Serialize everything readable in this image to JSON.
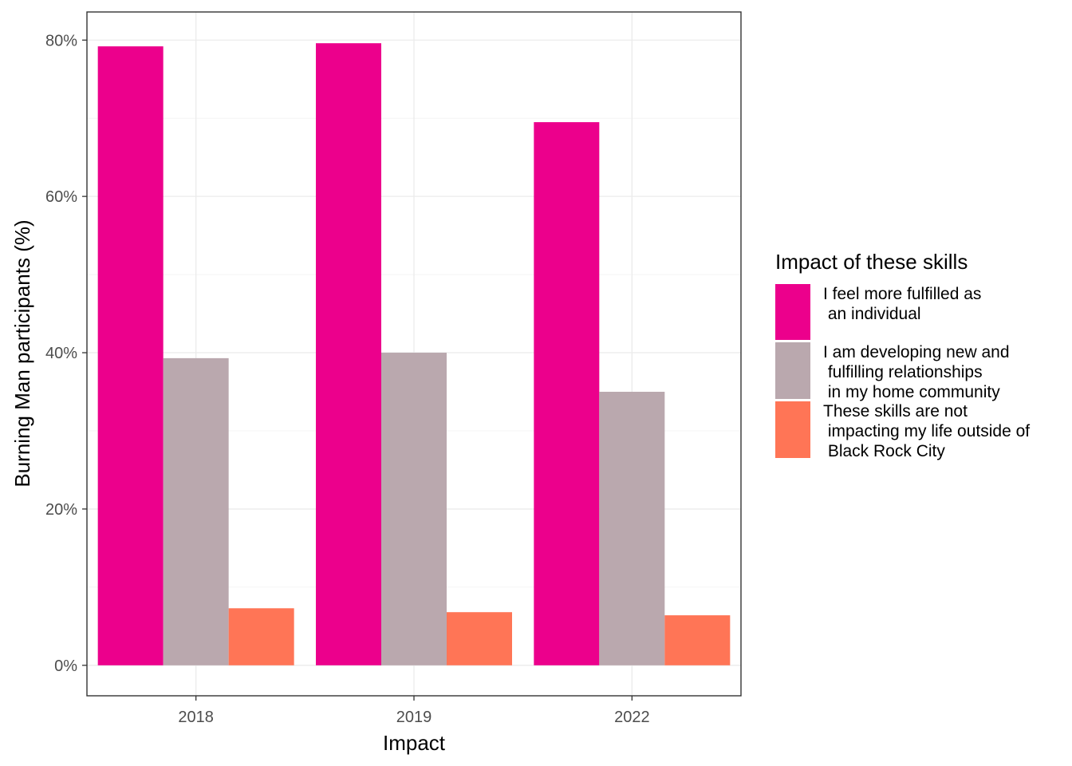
{
  "chart_data": {
    "type": "bar",
    "title": "",
    "xlabel": "Impact",
    "ylabel": "Burning Man participants (%)",
    "categories": [
      "2018",
      "2019",
      "2022"
    ],
    "ylim": [
      -3.9,
      83.6
    ],
    "y_ticks": [
      0,
      20,
      40,
      60,
      80
    ],
    "y_tick_labels": [
      "0%",
      "20%",
      "40%",
      "60%",
      "80%"
    ],
    "grid": true,
    "legend_title": "Impact of these skills",
    "legend_position": "right",
    "series": [
      {
        "name": "I feel more fulfilled as an individual",
        "label_lines": [
          "I feel more fulfilled as",
          " an individual"
        ],
        "color": "#EC008C",
        "values": [
          79.2,
          79.6,
          69.5
        ]
      },
      {
        "name": "I am developing new and fulfilling relationships in my home community",
        "label_lines": [
          "I am developing new and",
          " fulfilling relationships",
          " in my home community"
        ],
        "color": "#BAA8AE",
        "values": [
          39.3,
          40.0,
          35.0
        ]
      },
      {
        "name": "These skills are not impacting my life outside of Black Rock City",
        "label_lines": [
          "These skills are not",
          " impacting my life outside of",
          " Black Rock City"
        ],
        "color": "#FF7556",
        "values": [
          7.3,
          6.8,
          6.4
        ]
      }
    ]
  }
}
